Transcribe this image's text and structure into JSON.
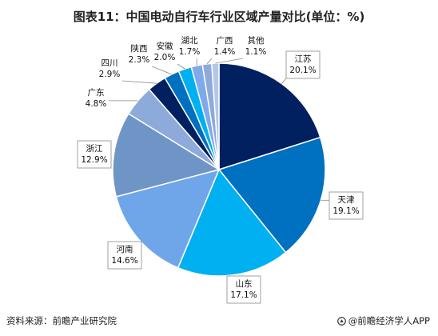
{
  "title": "图表11：中国电动自行车行业区域产量对比(单位：%)",
  "source": "资料来源：前瞻产业研究院",
  "brand": "@前瞻经济学人APP",
  "chart_data": {
    "type": "pie",
    "unit": "%",
    "slices": [
      {
        "name": "江苏",
        "value": 20.1,
        "label": "20.1%",
        "color": "#002060"
      },
      {
        "name": "天津",
        "value": 19.1,
        "label": "19.1%",
        "color": "#0070C0"
      },
      {
        "name": "山东",
        "value": 17.1,
        "label": "17.1%",
        "color": "#00B0F0"
      },
      {
        "name": "河南",
        "value": 14.6,
        "label": "14.6%",
        "color": "#6FA6E9"
      },
      {
        "name": "浙江",
        "value": 12.9,
        "label": "12.9%",
        "color": "#6E95C6"
      },
      {
        "name": "广东",
        "value": 4.8,
        "label": "4.8%",
        "color": "#8EAADB"
      },
      {
        "name": "四川",
        "value": 2.9,
        "label": "2.9%",
        "color": "#002060"
      },
      {
        "name": "陕西",
        "value": 2.3,
        "label": "2.3%",
        "color": "#0070C0"
      },
      {
        "name": "安徽",
        "value": 2.0,
        "label": "2.0%",
        "color": "#00B0F0"
      },
      {
        "name": "湖北",
        "value": 1.7,
        "label": "1.7%",
        "color": "#7FA9EB"
      },
      {
        "name": "广西",
        "value": 1.4,
        "label": "1.4%",
        "color": "#8EAADB"
      },
      {
        "name": "其他",
        "value": 1.1,
        "label": "1.1%",
        "color": "#B4C7E7"
      }
    ],
    "start_angle_deg": 0,
    "direction": "clockwise",
    "legend": "none"
  }
}
